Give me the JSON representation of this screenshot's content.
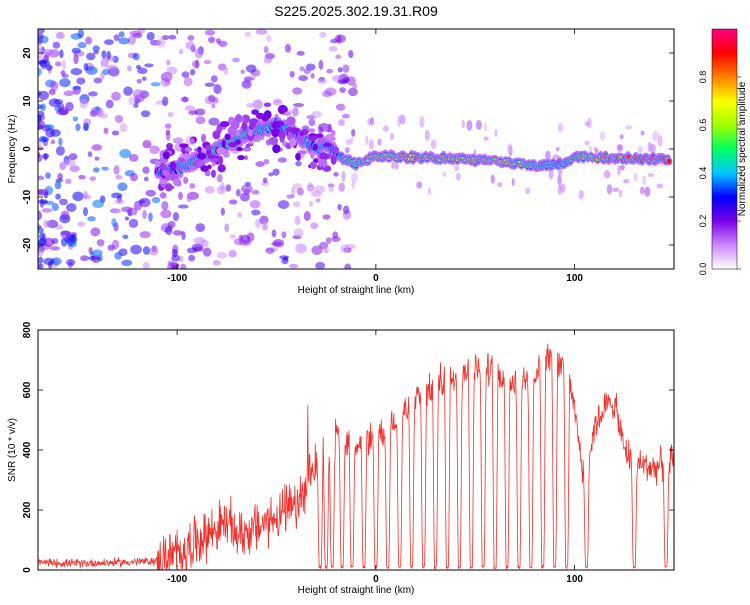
{
  "page_title": "S225.2025.302.19.31.R09",
  "colors": {
    "snr_line": "#f0302a",
    "axis": "#000000",
    "background": "#ffffff"
  },
  "chart_data": [
    {
      "type": "heatmap",
      "title": "S225.2025.302.19.31.R09",
      "xlabel": "Height of straight line (km)",
      "ylabel": "Frequency (Hz)",
      "xlim": [
        -170,
        150
      ],
      "ylim": [
        -25,
        25
      ],
      "x_ticks": [
        -100,
        0,
        100
      ],
      "y_ticks": [
        -20,
        -10,
        0,
        10,
        20
      ],
      "colorbar": {
        "label": "Normalized spectral amplitude",
        "range": [
          0,
          1
        ],
        "ticks": [
          "0.0",
          "0.2",
          "0.4",
          "0.6",
          "0.8"
        ],
        "colormap": [
          "#ffffff",
          "#cc88ff",
          "#7a00e6",
          "#0000ff",
          "#00c8ff",
          "#00ff60",
          "#a0ff00",
          "#ffff00",
          "#ff8000",
          "#ff0000",
          "#ff0080"
        ]
      },
      "ridge": {
        "x": [
          -110,
          -100,
          -90,
          -80,
          -70,
          -60,
          -50,
          -40,
          -30,
          -25,
          -20,
          -15,
          -10,
          0,
          20,
          40,
          60,
          80,
          95,
          100,
          120,
          148
        ],
        "freq_hz": [
          -5,
          -4,
          -2.5,
          0,
          2,
          4,
          5,
          3,
          0,
          1,
          -1,
          -2.5,
          -3,
          -1.5,
          -1.8,
          -2,
          -2.5,
          -3.5,
          -3,
          -1.5,
          -2,
          -2.2
        ],
        "amplitude": [
          0.3,
          0.35,
          0.5,
          0.6,
          0.55,
          0.45,
          0.4,
          0.35,
          0.35,
          0.5,
          0.3,
          0.55,
          0.5,
          0.6,
          0.8,
          0.7,
          0.75,
          0.5,
          0.4,
          0.55,
          0.85,
          0.9
        ]
      }
    },
    {
      "type": "line",
      "xlabel": "Height of straight line (km)",
      "ylabel": "SNR (10 * v/v)",
      "xlim": [
        -170,
        150
      ],
      "ylim": [
        0,
        800
      ],
      "x_ticks": [
        -100,
        0,
        100
      ],
      "y_ticks": [
        0,
        200,
        400,
        600,
        800
      ],
      "series": [
        {
          "x": [
            -170,
            -150,
            -130,
            -110,
            -100,
            -90,
            -80,
            -75,
            -70,
            -60,
            -50,
            -40,
            -35,
            -30,
            -25,
            -20,
            -15,
            -10,
            0,
            10,
            20,
            30,
            40,
            50,
            60,
            70,
            80,
            85,
            90,
            95,
            100,
            105,
            110,
            115,
            120,
            125,
            130,
            140,
            150
          ],
          "values": [
            25,
            22,
            25,
            30,
            50,
            100,
            140,
            160,
            120,
            140,
            180,
            210,
            260,
            360,
            400,
            430,
            440,
            430,
            450,
            500,
            560,
            620,
            650,
            670,
            660,
            620,
            650,
            720,
            680,
            700,
            520,
            300,
            480,
            540,
            560,
            400,
            360,
            340,
            370
          ],
          "dropouts_x": [
            -28,
            -25,
            -22,
            -17,
            -12,
            -6,
            0,
            6,
            12,
            18,
            24,
            30,
            36,
            42,
            48,
            54,
            60,
            66,
            72,
            78,
            84,
            90,
            96,
            106,
            130,
            146
          ]
        }
      ]
    }
  ]
}
